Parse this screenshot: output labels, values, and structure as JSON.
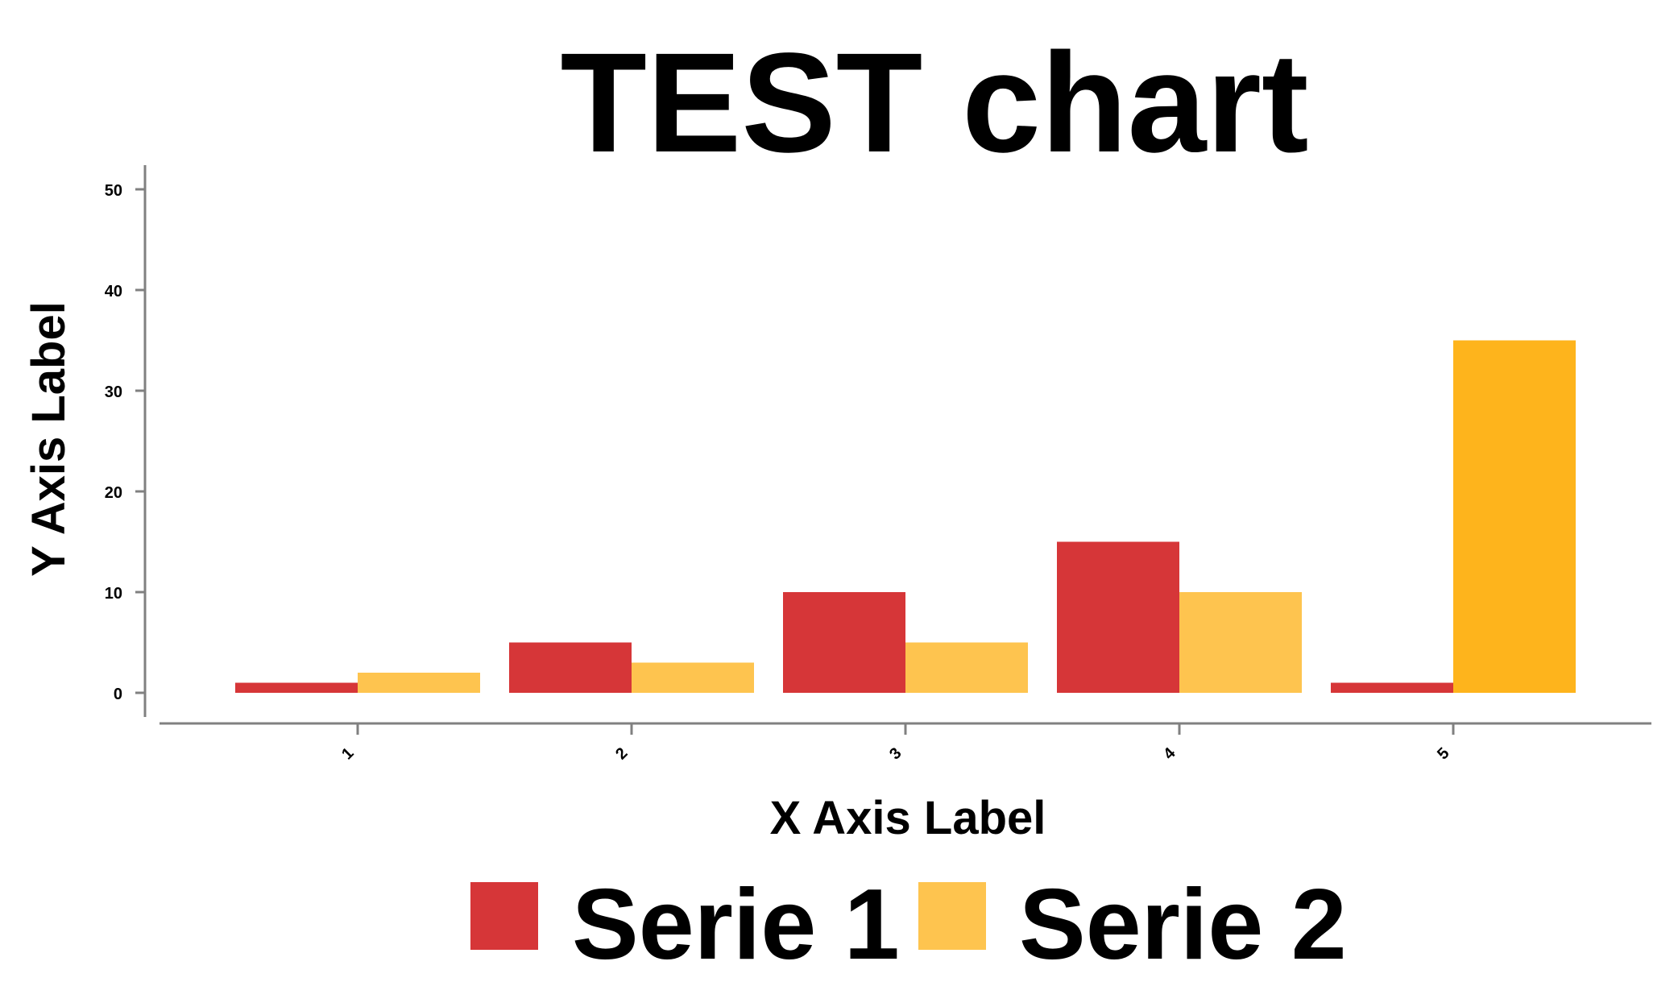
{
  "chart_data": {
    "type": "bar",
    "title": "TEST chart",
    "xlabel": "X Axis Label",
    "ylabel": "Y Axis Label",
    "categories": [
      "1",
      "2",
      "3",
      "4",
      "5"
    ],
    "series": [
      {
        "name": "Serie 1",
        "color": "#d63638",
        "values": [
          1,
          5,
          10,
          15,
          1
        ]
      },
      {
        "name": "Serie 2",
        "color": "#fec44f",
        "values": [
          2,
          3,
          5,
          10,
          35
        ]
      }
    ],
    "highlight": {
      "series": 1,
      "index": 4,
      "color": "#feb41c"
    },
    "yticks": [
      0,
      10,
      20,
      30,
      40,
      50
    ],
    "ylim": [
      -3,
      52
    ],
    "grid": false,
    "legend_position": "bottom"
  }
}
